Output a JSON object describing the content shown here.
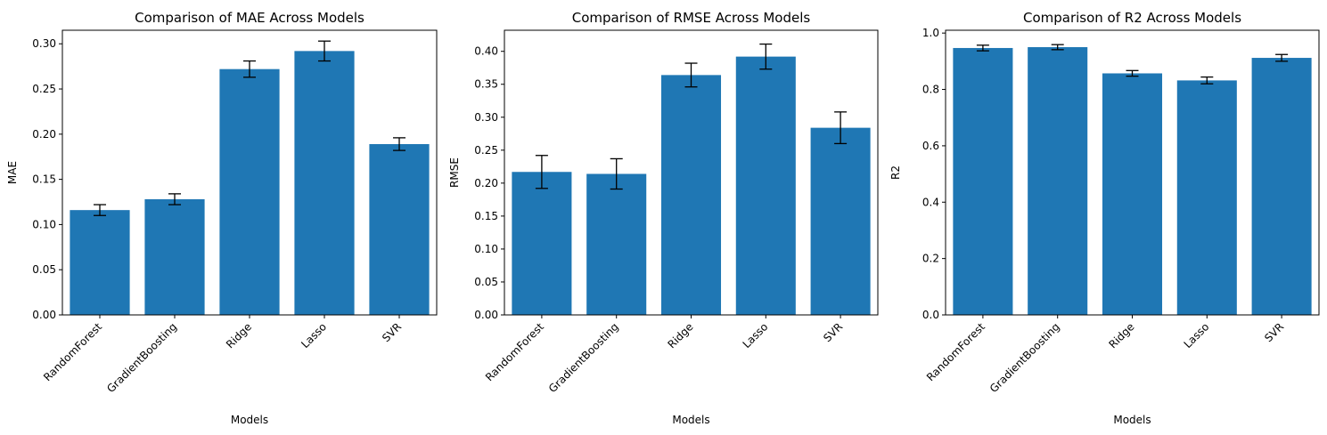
{
  "chart_data": [
    {
      "type": "bar",
      "title": "Comparison of MAE Across Models",
      "xlabel": "Models",
      "ylabel": "MAE",
      "categories": [
        "RandomForest",
        "GradientBoosting",
        "Ridge",
        "Lasso",
        "SVR"
      ],
      "values": [
        0.116,
        0.128,
        0.272,
        0.292,
        0.189
      ],
      "errors": [
        0.006,
        0.006,
        0.009,
        0.011,
        0.007
      ],
      "ylim": [
        0,
        0.315
      ],
      "yticks": [
        0.0,
        0.05,
        0.1,
        0.15,
        0.2,
        0.25,
        0.3
      ],
      "ytick_labels": [
        "0.00",
        "0.05",
        "0.10",
        "0.15",
        "0.20",
        "0.25",
        "0.30"
      ],
      "bar_color": "#1f77b4",
      "grid": false
    },
    {
      "type": "bar",
      "title": "Comparison of RMSE Across Models",
      "xlabel": "Models",
      "ylabel": "RMSE",
      "categories": [
        "RandomForest",
        "GradientBoosting",
        "Ridge",
        "Lasso",
        "SVR"
      ],
      "values": [
        0.217,
        0.214,
        0.364,
        0.392,
        0.284
      ],
      "errors": [
        0.025,
        0.023,
        0.018,
        0.019,
        0.024
      ],
      "ylim": [
        0,
        0.432
      ],
      "yticks": [
        0.0,
        0.05,
        0.1,
        0.15,
        0.2,
        0.25,
        0.3,
        0.35,
        0.4
      ],
      "ytick_labels": [
        "0.00",
        "0.05",
        "0.10",
        "0.15",
        "0.20",
        "0.25",
        "0.30",
        "0.35",
        "0.40"
      ],
      "bar_color": "#1f77b4",
      "grid": false
    },
    {
      "type": "bar",
      "title": "Comparison of R2 Across Models",
      "xlabel": "Models",
      "ylabel": "R2",
      "categories": [
        "RandomForest",
        "GradientBoosting",
        "Ridge",
        "Lasso",
        "SVR"
      ],
      "values": [
        0.947,
        0.95,
        0.857,
        0.832,
        0.912
      ],
      "errors": [
        0.01,
        0.009,
        0.01,
        0.012,
        0.012
      ],
      "ylim": [
        0,
        1.01
      ],
      "yticks": [
        0.0,
        0.2,
        0.4,
        0.6,
        0.8,
        1.0
      ],
      "ytick_labels": [
        "0.0",
        "0.2",
        "0.4",
        "0.6",
        "0.8",
        "1.0"
      ],
      "bar_color": "#1f77b4",
      "grid": false
    }
  ]
}
